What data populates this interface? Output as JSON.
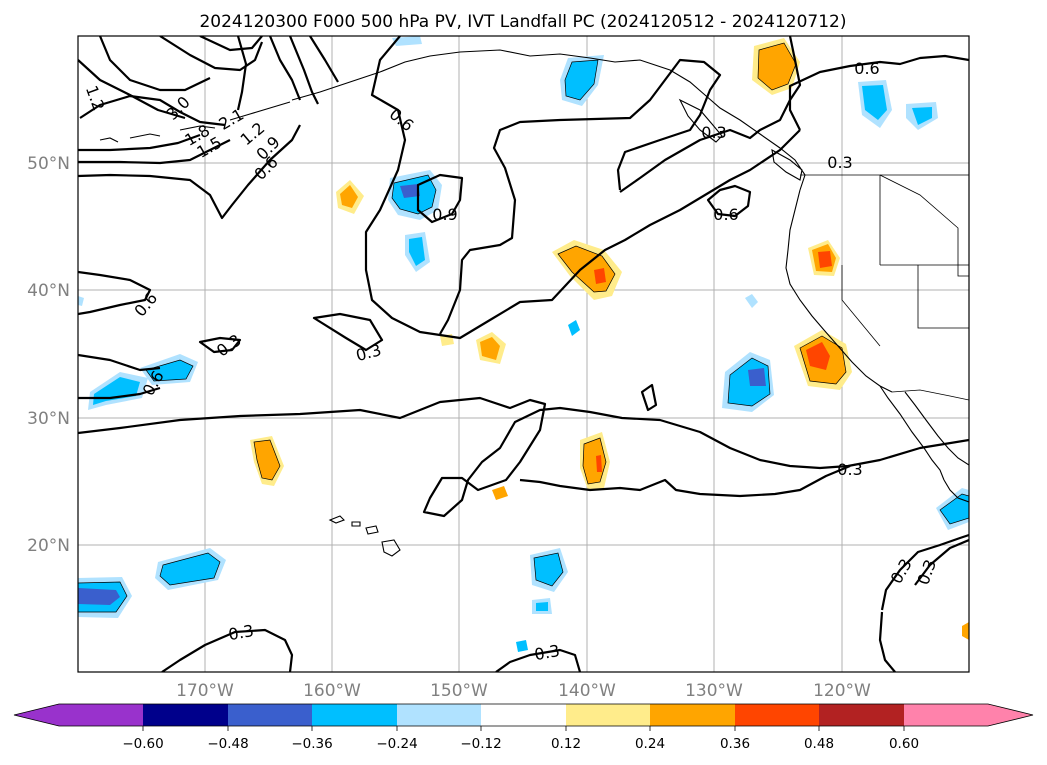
{
  "title": "2024120300 F000 500 hPa PV, IVT Landfall PC (2024120512 - 2024120712)",
  "lat_labels": [
    "50°N",
    "40°N",
    "30°N",
    "20°N"
  ],
  "lon_labels": [
    "170°W",
    "160°W",
    "150°W",
    "140°W",
    "130°W",
    "120°W"
  ],
  "contour_labels": [
    "0.6",
    "0.3",
    "0.6",
    "0.3",
    "1.2",
    "3.0",
    "2.1",
    "1.5",
    "1.8",
    "1.2",
    "0.9",
    "0.6",
    "0.6",
    "0.9",
    "0.6",
    "0.3",
    "0.3",
    "0.6",
    "0.3",
    "0.3",
    "0.3",
    "0.3",
    "0.3",
    "0.3"
  ],
  "colorbar": {
    "ticks": [
      "−0.60",
      "−0.48",
      "−0.36",
      "−0.24",
      "−0.12",
      "0.12",
      "0.24",
      "0.36",
      "0.48",
      "0.60"
    ],
    "colors": [
      "#9932cc",
      "#00008b",
      "#3a5fcd",
      "#00bfff",
      "#b0e2ff",
      "#ffffff",
      "#ffec8b",
      "#ffa500",
      "#ff4500",
      "#b22222",
      "#ff82ab"
    ]
  },
  "colors": {
    "neg_strong": "#3a5fcd",
    "neg": "#00bfff",
    "neg_light": "#b0e2ff",
    "pos_light": "#ffec8b",
    "pos": "#ffa500",
    "pos_strong": "#ff4500"
  }
}
